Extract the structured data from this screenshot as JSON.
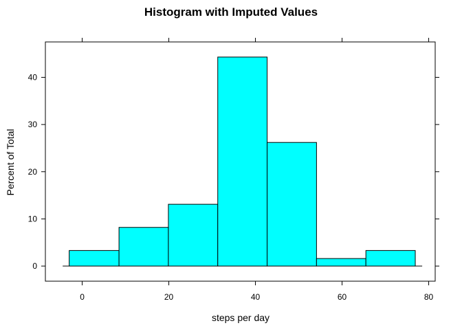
{
  "chart_data": {
    "type": "histogram",
    "title": "Histogram with Imputed Values",
    "xlabel": "steps per day",
    "ylabel": "Percent of Total",
    "xlim": [
      -8.5,
      81.5
    ],
    "ylim": [
      -3.2,
      47.5
    ],
    "xticks": [
      0,
      20,
      40,
      60,
      80
    ],
    "yticks": [
      0,
      10,
      20,
      30,
      40
    ],
    "bins": [
      {
        "x0": -3.0,
        "x1": 8.5,
        "value": 3.3
      },
      {
        "x0": 8.5,
        "x1": 19.9,
        "value": 8.2
      },
      {
        "x0": 19.9,
        "x1": 31.3,
        "value": 13.1
      },
      {
        "x0": 31.3,
        "x1": 42.7,
        "value": 44.3
      },
      {
        "x0": 42.7,
        "x1": 54.1,
        "value": 26.2
      },
      {
        "x0": 54.1,
        "x1": 65.5,
        "value": 1.6
      },
      {
        "x0": 65.5,
        "x1": 76.9,
        "value": 3.3
      }
    ],
    "bar_color": "#00ffff",
    "bar_edge_color": "#000000",
    "grid": false
  }
}
